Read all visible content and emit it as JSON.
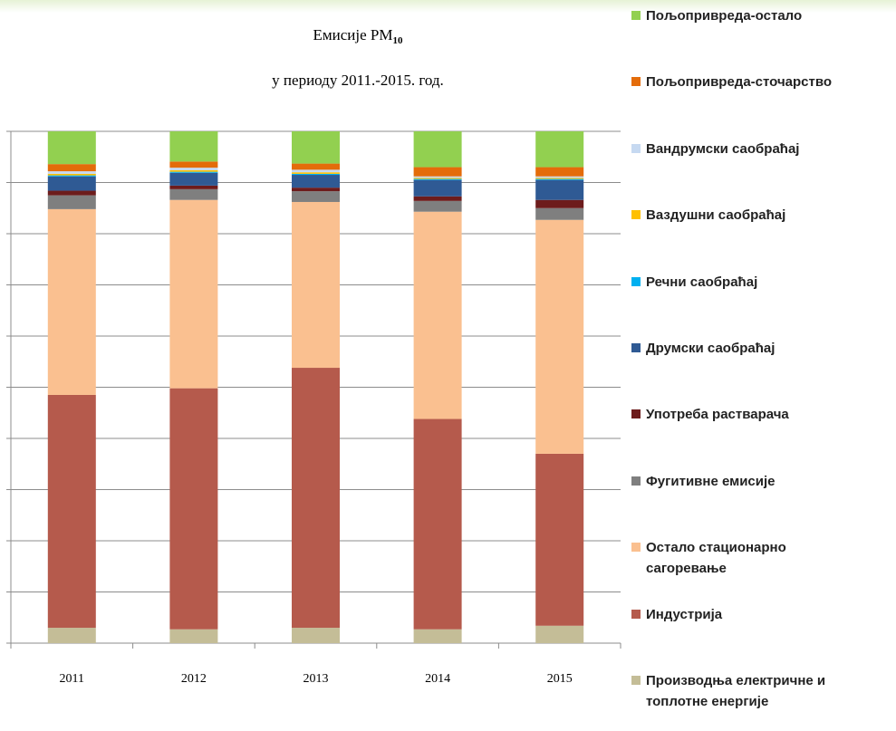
{
  "chart_data": {
    "type": "stacked_bar",
    "title": "Емисије PM",
    "title_subscript": "10",
    "subtitle": "у периоду 2011.-2015. год.",
    "categories": [
      "2011",
      "2012",
      "2013",
      "2014",
      "2015"
    ],
    "ylim": [
      0,
      100
    ],
    "yticks": [
      0,
      10,
      20,
      30,
      40,
      50,
      60,
      70,
      80,
      90,
      100
    ],
    "grid": true,
    "series": [
      {
        "name": "Производња електричне и топлотне енергије",
        "color": "#c4bd97",
        "values": [
          3.0,
          2.7,
          3.0,
          2.7,
          3.4
        ]
      },
      {
        "name": "Индустрија",
        "color": "#b55a4c",
        "values": [
          45.5,
          47.1,
          50.8,
          41.1,
          33.6
        ]
      },
      {
        "name": "Остало стационарно сагоревање",
        "color": "#fac090",
        "values": [
          36.3,
          36.8,
          32.4,
          40.5,
          45.7
        ]
      },
      {
        "name": "Фугитивне емисије",
        "color": "#7f7f7f",
        "values": [
          2.7,
          2.1,
          2.1,
          2.1,
          2.3
        ]
      },
      {
        "name": "Употреба растварача",
        "color": "#6d1c1c",
        "values": [
          0.9,
          0.7,
          0.7,
          0.9,
          1.6
        ]
      },
      {
        "name": "Друмски саобраћај",
        "color": "#2f5a94",
        "values": [
          2.8,
          2.5,
          2.5,
          3.2,
          3.9
        ]
      },
      {
        "name": "Речни саобраћај",
        "color": "#00b0f0",
        "values": [
          0.2,
          0.2,
          0.2,
          0.2,
          0.2
        ]
      },
      {
        "name": "Ваздушни саобраћај",
        "color": "#ffc000",
        "values": [
          0.3,
          0.3,
          0.3,
          0.2,
          0.2
        ]
      },
      {
        "name": "Вандрумски саобраћај",
        "color": "#c6d9f1",
        "values": [
          0.5,
          0.5,
          0.5,
          0.3,
          0.3
        ]
      },
      {
        "name": "Пољопривреда-сточарство",
        "color": "#e46c0a",
        "values": [
          1.4,
          1.2,
          1.2,
          1.8,
          1.8
        ]
      },
      {
        "name": "Пољопривреда-остало",
        "color": "#92d050",
        "values": [
          6.4,
          5.9,
          6.3,
          7.0,
          7.0
        ]
      }
    ]
  }
}
